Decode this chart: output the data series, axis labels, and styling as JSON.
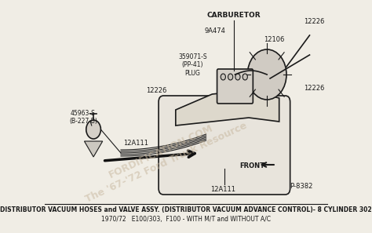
{
  "title_line1": "DISTRIBUTOR VACUUM HOSES and VALVE ASSY. (DISTRIBUTOR VACUUM ADVANCE CONTROL)- 8 CYLINDER 302",
  "title_line2": "1970/72   E100/303,  F100 - WITH M/T and WITHOUT A/C",
  "bg_color": "#f0ede5",
  "line_color": "#1a1a1a",
  "watermark_text": "FORDIFICATION.COM\nThe '67-'72 Ford Truck Resource",
  "watermark_color": "#c8b8a0",
  "labels": {
    "carburetor": "CARBURETOR",
    "part1": "9A474",
    "part2": "359071-S\n(PP-41)\nPLUG",
    "part3": "12106",
    "part4_tl": "12226",
    "part4_tr": "12226",
    "part4_mr": "12226",
    "part5": "45963-S\n(B-227-B)",
    "part6_l": "12A111",
    "part6_r": "12A111",
    "part7": "12226",
    "front": "FRONT",
    "partnum": "P-8382"
  },
  "diagram_bg": "#ffffff"
}
